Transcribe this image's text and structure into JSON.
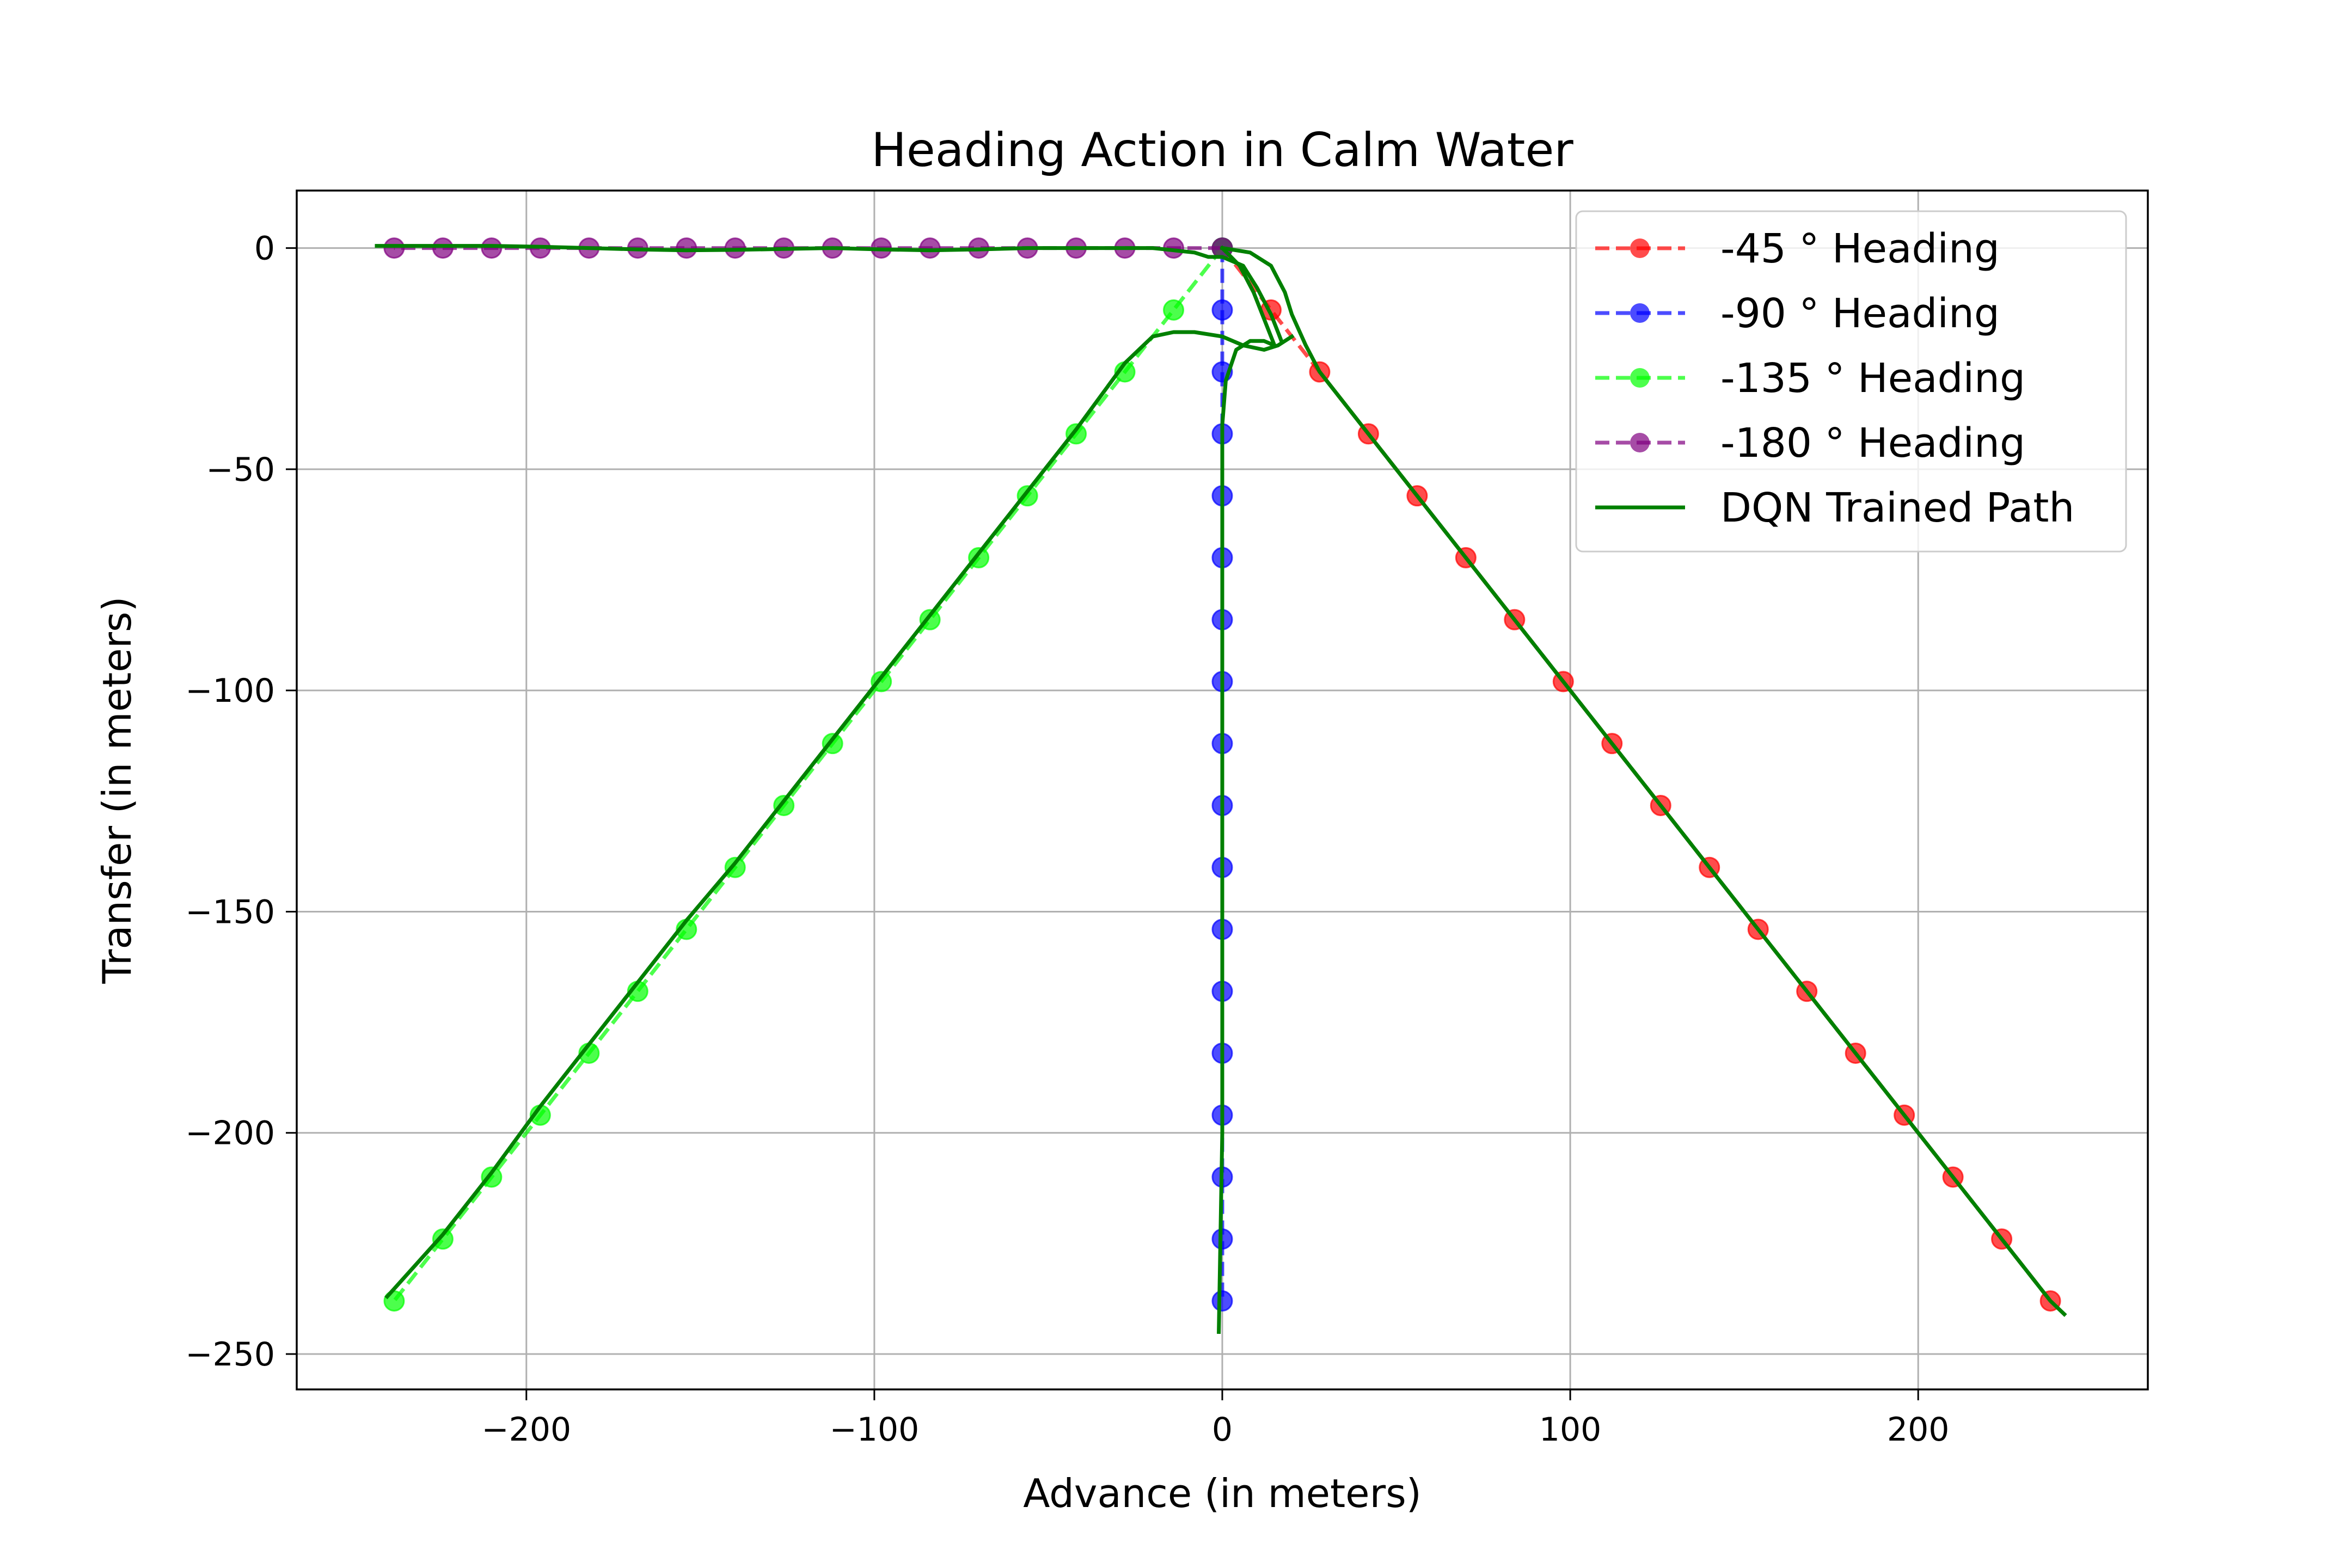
{
  "chart_data": {
    "type": "line",
    "title": "Heading Action in Calm Water",
    "xlabel": "Advance (in meters)",
    "ylabel": "Transfer (in meters)",
    "xlim": [
      -266,
      266
    ],
    "ylim": [
      -258,
      13
    ],
    "xticks": [
      -200,
      -100,
      0,
      100,
      200
    ],
    "yticks": [
      0,
      -50,
      -100,
      -150,
      -200,
      -250
    ],
    "xtick_labels": [
      "−200",
      "−100",
      "0",
      "100",
      "200"
    ],
    "ytick_labels": [
      "0",
      "−50",
      "−100",
      "−150",
      "−200",
      "−250"
    ],
    "grid": true,
    "legend_position": "top-right",
    "series": [
      {
        "name": "-45 ° Heading",
        "color": "#ff0000",
        "style": "dashed-markers",
        "points": [
          [
            0,
            0
          ],
          [
            14,
            -14
          ],
          [
            28,
            -28
          ],
          [
            42,
            -42
          ],
          [
            56,
            -56
          ],
          [
            70,
            -70
          ],
          [
            84,
            -84
          ],
          [
            98,
            -98
          ],
          [
            112,
            -112
          ],
          [
            126,
            -126
          ],
          [
            140,
            -140
          ],
          [
            154,
            -154
          ],
          [
            168,
            -168
          ],
          [
            182,
            -182
          ],
          [
            196,
            -196
          ],
          [
            210,
            -210
          ],
          [
            224,
            -224
          ],
          [
            238,
            -238
          ]
        ]
      },
      {
        "name": "-90 ° Heading",
        "color": "#0000ff",
        "style": "dashed-markers",
        "points": [
          [
            0,
            0
          ],
          [
            0,
            -14
          ],
          [
            0,
            -28
          ],
          [
            0,
            -42
          ],
          [
            0,
            -56
          ],
          [
            0,
            -70
          ],
          [
            0,
            -84
          ],
          [
            0,
            -98
          ],
          [
            0,
            -112
          ],
          [
            0,
            -126
          ],
          [
            0,
            -140
          ],
          [
            0,
            -154
          ],
          [
            0,
            -168
          ],
          [
            0,
            -182
          ],
          [
            0,
            -196
          ],
          [
            0,
            -210
          ],
          [
            0,
            -224
          ],
          [
            0,
            -238
          ]
        ]
      },
      {
        "name": "-135 ° Heading",
        "color": "#00ff00",
        "style": "dashed-markers",
        "points": [
          [
            0,
            0
          ],
          [
            -14,
            -14
          ],
          [
            -28,
            -28
          ],
          [
            -42,
            -42
          ],
          [
            -56,
            -56
          ],
          [
            -70,
            -70
          ],
          [
            -84,
            -84
          ],
          [
            -98,
            -98
          ],
          [
            -112,
            -112
          ],
          [
            -126,
            -126
          ],
          [
            -140,
            -140
          ],
          [
            -154,
            -154
          ],
          [
            -168,
            -168
          ],
          [
            -182,
            -182
          ],
          [
            -196,
            -196
          ],
          [
            -210,
            -210
          ],
          [
            -224,
            -224
          ],
          [
            -238,
            -238
          ]
        ]
      },
      {
        "name": "-180 ° Heading",
        "color": "#800080",
        "style": "dashed-markers",
        "points": [
          [
            0,
            0
          ],
          [
            -14,
            0
          ],
          [
            -28,
            0
          ],
          [
            -42,
            0
          ],
          [
            -56,
            0
          ],
          [
            -70,
            0
          ],
          [
            -84,
            0
          ],
          [
            -98,
            0
          ],
          [
            -112,
            0
          ],
          [
            -126,
            0
          ],
          [
            -140,
            0
          ],
          [
            -154,
            0
          ],
          [
            -168,
            0
          ],
          [
            -182,
            0
          ],
          [
            -196,
            0
          ],
          [
            -210,
            0
          ],
          [
            -224,
            0
          ],
          [
            -238,
            0
          ]
        ]
      },
      {
        "name": "DQN Trained Path",
        "color": "#008000",
        "style": "solid",
        "paths": [
          [
            [
              0,
              0
            ],
            [
              8,
              -1
            ],
            [
              14,
              -4
            ],
            [
              18,
              -10
            ],
            [
              20,
              -15
            ],
            [
              24,
              -22
            ],
            [
              28,
              -28
            ],
            [
              42,
              -42
            ],
            [
              56,
              -56
            ],
            [
              70,
              -70
            ],
            [
              84,
              -84
            ],
            [
              98,
              -98
            ],
            [
              112,
              -112
            ],
            [
              126,
              -126
            ],
            [
              140,
              -140
            ],
            [
              154,
              -154
            ],
            [
              168,
              -168
            ],
            [
              182,
              -182
            ],
            [
              196,
              -196
            ],
            [
              210,
              -210
            ],
            [
              224,
              -224
            ],
            [
              238,
              -238
            ],
            [
              242,
              -241
            ]
          ],
          [
            [
              0,
              0
            ],
            [
              5,
              -4
            ],
            [
              9,
              -10
            ],
            [
              12,
              -16
            ],
            [
              14,
              -20
            ],
            [
              15,
              -22
            ],
            [
              12,
              -21
            ],
            [
              8,
              -21
            ],
            [
              4,
              -23
            ],
            [
              1,
              -30
            ],
            [
              0,
              -40
            ],
            [
              0,
              -100
            ],
            [
              0,
              -150
            ],
            [
              0,
              -200
            ],
            [
              -1,
              -245
            ]
          ],
          [
            [
              20,
              -20
            ],
            [
              16,
              -22
            ],
            [
              12,
              -23
            ],
            [
              6,
              -22
            ],
            [
              0,
              -20
            ],
            [
              -8,
              -19
            ],
            [
              -14,
              -19
            ],
            [
              -20,
              -20
            ],
            [
              -28,
              -26
            ],
            [
              -42,
              -41
            ],
            [
              -56,
              -55
            ],
            [
              -70,
              -69
            ],
            [
              -84,
              -83
            ],
            [
              -98,
              -97
            ],
            [
              -112,
              -111
            ],
            [
              -126,
              -125
            ],
            [
              -140,
              -139
            ],
            [
              -154,
              -152
            ],
            [
              -168,
              -166
            ],
            [
              -182,
              -180
            ],
            [
              -196,
              -194
            ],
            [
              -210,
              -209
            ],
            [
              -224,
              -223
            ],
            [
              -240,
              -237
            ]
          ],
          [
            [
              -243,
              0.5
            ],
            [
              -224,
              0.5
            ],
            [
              -210,
              0.5
            ],
            [
              -196,
              0.3
            ],
            [
              -182,
              0
            ],
            [
              -168,
              -0.3
            ],
            [
              -154,
              -0.5
            ],
            [
              -140,
              -0.4
            ],
            [
              -126,
              -0.2
            ],
            [
              -112,
              0
            ],
            [
              -98,
              -0.3
            ],
            [
              -84,
              -0.5
            ],
            [
              -70,
              -0.3
            ],
            [
              -56,
              0
            ],
            [
              -42,
              0
            ],
            [
              -30,
              0
            ],
            [
              -20,
              0
            ],
            [
              -14,
              -0.5
            ],
            [
              -8,
              -1
            ],
            [
              -4,
              -2
            ],
            [
              0,
              -2
            ],
            [
              6,
              -4
            ],
            [
              10,
              -9
            ],
            [
              14,
              -15
            ],
            [
              16,
              -19
            ],
            [
              17,
              -21
            ]
          ]
        ]
      }
    ]
  }
}
